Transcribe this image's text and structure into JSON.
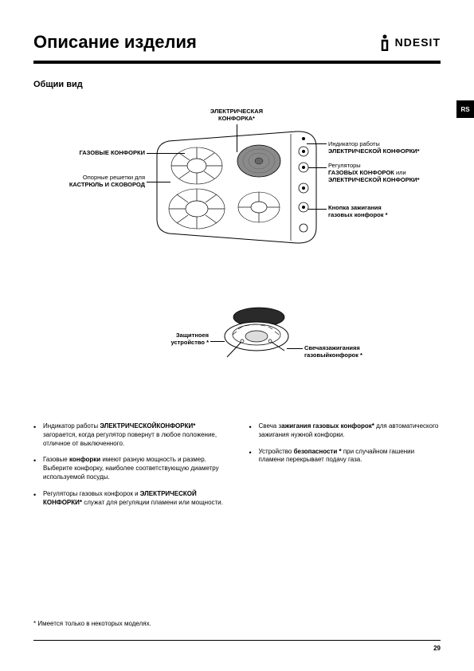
{
  "header": {
    "title": "Описание изделия",
    "brand": "NDESIT"
  },
  "subtitle": "Общии вид",
  "lang_tab": "RS",
  "labels": {
    "electric_burner": "ЭЛЕКТРИЧЕСКАЯ КОНФОРКА*",
    "gas_burners": "ГАЗОВЫЕ КОНФОРКИ",
    "pot_grates_1": "Опорные решетки для",
    "pot_grates_2": "КАСТРЮЛЬ И СКОВОРОД",
    "indicator_1": "Индикатор работы",
    "indicator_2": "ЭЛЕКТРИЧЕСКОЙ КОНФОРКИ*",
    "regulators_1": "Регуляторы",
    "regulators_2": "ГАЗОВЫХ КОНФОРОК",
    "regulators_or": " или",
    "regulators_3": "ЭЛЕКТРИЧЕСКОЙ КОНФОРКИ*",
    "ignition_1": "Кнопка зажигания",
    "ignition_2": "газовых конфорок *",
    "safety_1": "Защитноея",
    "safety_2": "устройство *",
    "spark_1": "Свечаязажиганияя",
    "spark_2": "газовыйконфорок *"
  },
  "bullets_left": [
    {
      "text": "Индикатор работы <b>ЭЛЕКТРИЧЕСКОЙКОНФОРКИ*</b> загорается, когда регулятор повернут в любое положение, отличное от выключенного."
    },
    {
      "text": "Газовые <b>конфорки</b> имеют разную мощность и размер. Выберите конфорку, наиболее соответствующую диаметру используемой посуды."
    },
    {
      "text": "Регуляторы газовых конфорок и <b>ЭЛЕКТРИЧЕСКОЙ КОНФОРКИ*</b> служат для регуляции пламени или мощности."
    }
  ],
  "bullets_right": [
    {
      "text": "Свеча з<b>ажигания газовых конфорок*</b> для автоматического зажигания нужной конфорки."
    },
    {
      "text": "Устройство <b>безопасности *</b> при случайном гашении пламени перекрывает подачу газа."
    }
  ],
  "footnote": "* Имеется только в некоторых моделях.",
  "page_number": "29",
  "style": {
    "background": "#ffffff",
    "text_color": "#000000",
    "burner_fill": "#707070",
    "hob_fill": "#ffffff",
    "stroke": "#000000"
  }
}
